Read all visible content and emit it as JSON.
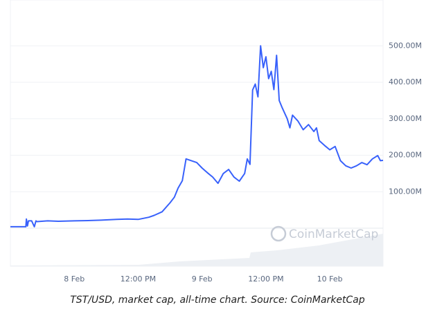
{
  "chart_data": {
    "type": "line",
    "caption": "TST/USD, market cap, all-time chart. Source: CoinMarketCap",
    "watermark": "CoinMarketCap",
    "x": [
      -12,
      -9.1,
      -9,
      -8.8,
      -8.6,
      -8,
      -7.5,
      -7.2,
      -7,
      -5,
      -3,
      0,
      3,
      5,
      8,
      10,
      12,
      14,
      15,
      16.5,
      18,
      18.8,
      19.5,
      20.3,
      21,
      22,
      23,
      24,
      25,
      26,
      27,
      28,
      29,
      30,
      31,
      32,
      32.5,
      33,
      33.5,
      34,
      34.5,
      35,
      35.5,
      36,
      36.5,
      37,
      37.5,
      38,
      38.5,
      39,
      40,
      40.5,
      41,
      42,
      43,
      44,
      45,
      45.5,
      46,
      47,
      48,
      49,
      50,
      51,
      52,
      53,
      54,
      55,
      56,
      57,
      57.5,
      58
    ],
    "series": [
      {
        "name": "TST/USD",
        "color": "#3861fb",
        "values": [
          4,
          4,
          25,
          6,
          20,
          20,
          4,
          20,
          18,
          20,
          19,
          20,
          21,
          22,
          24,
          25,
          24,
          30,
          35,
          45,
          70,
          85,
          110,
          130,
          190,
          185,
          180,
          165,
          152,
          140,
          123,
          150,
          161,
          140,
          129,
          150,
          190,
          175,
          379,
          395,
          360,
          500,
          440,
          470,
          410,
          430,
          380,
          474,
          350,
          332,
          300,
          275,
          310,
          294,
          270,
          284,
          265,
          275,
          240,
          227,
          215,
          224,
          185,
          171,
          165,
          171,
          180,
          174,
          190,
          199,
          185,
          186
        ]
      }
    ],
    "xlim": [
      -12,
      58
    ],
    "xticks": [
      {
        "value": 0,
        "label": "8 Feb"
      },
      {
        "value": 12,
        "label": "12:00 PM"
      },
      {
        "value": 24,
        "label": "9 Feb"
      },
      {
        "value": 36,
        "label": "12:00 PM"
      },
      {
        "value": 48,
        "label": "10 Feb"
      }
    ],
    "ylim": [
      0,
      600
    ],
    "yticks": [
      {
        "value": 100,
        "label": "100.00M"
      },
      {
        "value": 200,
        "label": "200.00M"
      },
      {
        "value": 300,
        "label": "300.00M"
      },
      {
        "value": 400,
        "label": "400.00M"
      },
      {
        "value": 500,
        "label": "500.00M"
      }
    ],
    "grid": true
  }
}
